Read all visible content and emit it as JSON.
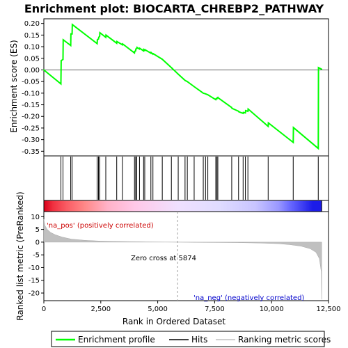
{
  "chart_data": {
    "type": "line",
    "title": "Enrichment plot: BIOCARTA_CHREBP2_PATHWAY",
    "panels": {
      "enrichment": {
        "ylabel": "Enrichment score (ES)",
        "ylim": [
          -0.37,
          0.22
        ],
        "yticks": [
          0.2,
          0.15,
          0.1,
          0.05,
          0.0,
          -0.05,
          -0.1,
          -0.15,
          -0.2,
          -0.25,
          -0.3,
          -0.35
        ],
        "ytick_labels": [
          "0.20",
          "0.15",
          "0.10",
          "0.05",
          "0.00",
          "-0.05",
          "-0.10",
          "-0.15",
          "-0.20",
          "-0.25",
          "-0.30",
          "-0.35"
        ],
        "series": [
          {
            "name": "Enrichment profile",
            "color": "#00ff00",
            "x": [
              0,
              750,
              760,
              840,
              850,
              1180,
              1190,
              1240,
              1250,
              2340,
              2350,
              2400,
              2410,
              2450,
              2460,
              2720,
              2730,
              3200,
              3210,
              3450,
              3460,
              3980,
              3990,
              4030,
              4040,
              4080,
              4090,
              4200,
              4210,
              4380,
              4390,
              4430,
              4440,
              4700,
              4710,
              4790,
              4800,
              5200,
              5600,
              5900,
              6200,
              6300,
              6600,
              7000,
              7100,
              7200,
              7550,
              7560,
              7600,
              7610,
              7640,
              7650,
              8250,
              8260,
              8550,
              8560,
              8750,
              8760,
              8850,
              8860,
              8960,
              8970,
              9850,
              9860,
              10950,
              10960,
              12050,
              12060,
              12200
            ],
            "y": [
              0.0,
              -0.06,
              0.04,
              0.045,
              0.13,
              0.105,
              0.155,
              0.155,
              0.195,
              0.113,
              0.13,
              0.133,
              0.14,
              0.145,
              0.16,
              0.14,
              0.15,
              0.115,
              0.122,
              0.108,
              0.112,
              0.073,
              0.08,
              0.082,
              0.09,
              0.092,
              0.097,
              0.09,
              0.093,
              0.082,
              0.088,
              0.084,
              0.087,
              0.072,
              0.075,
              0.068,
              0.07,
              0.046,
              0.01,
              -0.018,
              -0.045,
              -0.05,
              -0.072,
              -0.1,
              -0.103,
              -0.107,
              -0.128,
              -0.124,
              -0.124,
              -0.12,
              -0.118,
              -0.12,
              -0.162,
              -0.165,
              -0.178,
              -0.18,
              -0.187,
              -0.183,
              -0.185,
              -0.175,
              -0.178,
              -0.168,
              -0.243,
              -0.228,
              -0.312,
              -0.248,
              -0.338,
              0.01,
              0.003
            ]
          }
        ],
        "hits_label": "Hits",
        "hits": [
          750,
          840,
          1180,
          1240,
          2340,
          2400,
          2450,
          2720,
          3200,
          3450,
          3980,
          4030,
          4080,
          4200,
          4380,
          4430,
          4700,
          4790,
          5200,
          5600,
          5900,
          6200,
          6300,
          6600,
          7000,
          7100,
          7200,
          7550,
          7600,
          7640,
          8250,
          8550,
          8750,
          8850,
          8960,
          9850,
          10950,
          12050
        ]
      },
      "ranked_metric": {
        "ylabel": "Ranked list metric (PreRanked)",
        "ylim": [
          -23,
          12
        ],
        "yticks": [
          10,
          5,
          0,
          -5,
          -10,
          -15,
          -20
        ],
        "ytick_labels": [
          "10",
          "5",
          "0",
          "-5",
          "-10",
          "-15",
          "-20"
        ],
        "series_name": "Ranking metric scores",
        "color": "#c0c0c0",
        "x": [
          0,
          50,
          150,
          300,
          500,
          800,
          1200,
          1800,
          2500,
          3500,
          4500,
          5874,
          7000,
          8500,
          9500,
          10300,
          10800,
          11300,
          11700,
          11950,
          12100,
          12180,
          12200
        ],
        "y": [
          9.0,
          6.5,
          5.0,
          3.8,
          2.9,
          2.0,
          1.2,
          0.7,
          0.4,
          0.25,
          0.1,
          0.0,
          -0.1,
          -0.2,
          -0.35,
          -0.6,
          -1.0,
          -1.6,
          -2.6,
          -4.0,
          -6.5,
          -11.5,
          -22.5
        ],
        "zero_cross_label": "Zero cross at 5874",
        "zero_cross": 5874,
        "pos_label": "'na_pos' (positively correlated)",
        "neg_label": "'na_neg' (negatively correlated)",
        "pos_color": "#cc0000",
        "neg_color": "#0000cc"
      }
    },
    "xlabel": "Rank in Ordered Dataset",
    "xlim": [
      0,
      12500
    ],
    "xticks": [
      0,
      2500,
      5000,
      7500,
      10000,
      12500
    ],
    "xtick_labels": [
      "0",
      "2,500",
      "5,000",
      "7,500",
      "10,000",
      "12,500"
    ],
    "colorbar": {
      "stops": [
        {
          "at": 0,
          "color": "#d8001a"
        },
        {
          "at": 400,
          "color": "#f03040"
        },
        {
          "at": 1000,
          "color": "#fa5c64"
        },
        {
          "at": 1800,
          "color": "#ff8888"
        },
        {
          "at": 2800,
          "color": "#ffb2c8"
        },
        {
          "at": 4000,
          "color": "#ffc8e8"
        },
        {
          "at": 5874,
          "color": "#f0e0ff"
        },
        {
          "at": 7700,
          "color": "#e0dcff"
        },
        {
          "at": 9300,
          "color": "#c8c4ff"
        },
        {
          "at": 10300,
          "color": "#9a98ff"
        },
        {
          "at": 10800,
          "color": "#6a6aff"
        },
        {
          "at": 11800,
          "color": "#1c1ce8"
        },
        {
          "at": 12200,
          "color": "#1c1ce8"
        }
      ]
    },
    "legend": {
      "placement": "bottom",
      "items": [
        {
          "label": "Enrichment profile",
          "color": "#00ff00"
        },
        {
          "label": "Hits",
          "color": "#000000"
        },
        {
          "label": "Ranking metric scores",
          "color": "#c0c0c0"
        }
      ]
    }
  }
}
